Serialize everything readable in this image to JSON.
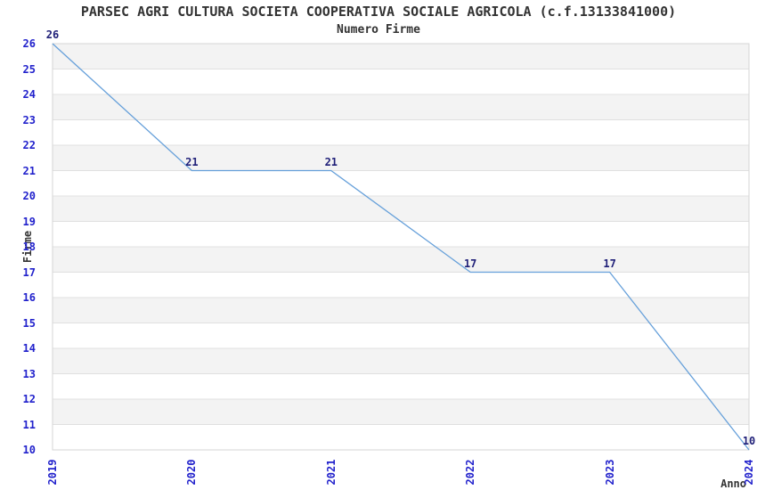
{
  "title": "PARSEC AGRI CULTURA SOCIETA COOPERATIVA SOCIALE AGRICOLA (c.f.13133841000)",
  "subtitle": "Numero Firme",
  "chart_data": {
    "type": "line",
    "x": [
      2019,
      2020,
      2021,
      2022,
      2023,
      2024
    ],
    "values": [
      26,
      21,
      21,
      17,
      17,
      10
    ],
    "title": "PARSEC AGRI CULTURA SOCIETA COOPERATIVA SOCIALE AGRICOLA (c.f.13133841000)",
    "subtitle": "Numero Firme",
    "xlabel": "Anno",
    "ylabel": "Firme",
    "ylim": [
      10,
      26
    ],
    "ytick_step": 1,
    "xticks": [
      "2019",
      "2020",
      "2021",
      "2022",
      "2023",
      "2024"
    ],
    "grid": "horizontal-bands",
    "legend": "none",
    "data_labels_shown": true,
    "colors": {
      "line": "#66A0DA",
      "tick_label": "#2222CC",
      "data_label": "#1F1F78",
      "text": "#333333",
      "band": "#F3F3F3",
      "gridline": "#E0E0E0",
      "plot_border": "#D6D6D6",
      "background": "#FFFFFF"
    }
  }
}
